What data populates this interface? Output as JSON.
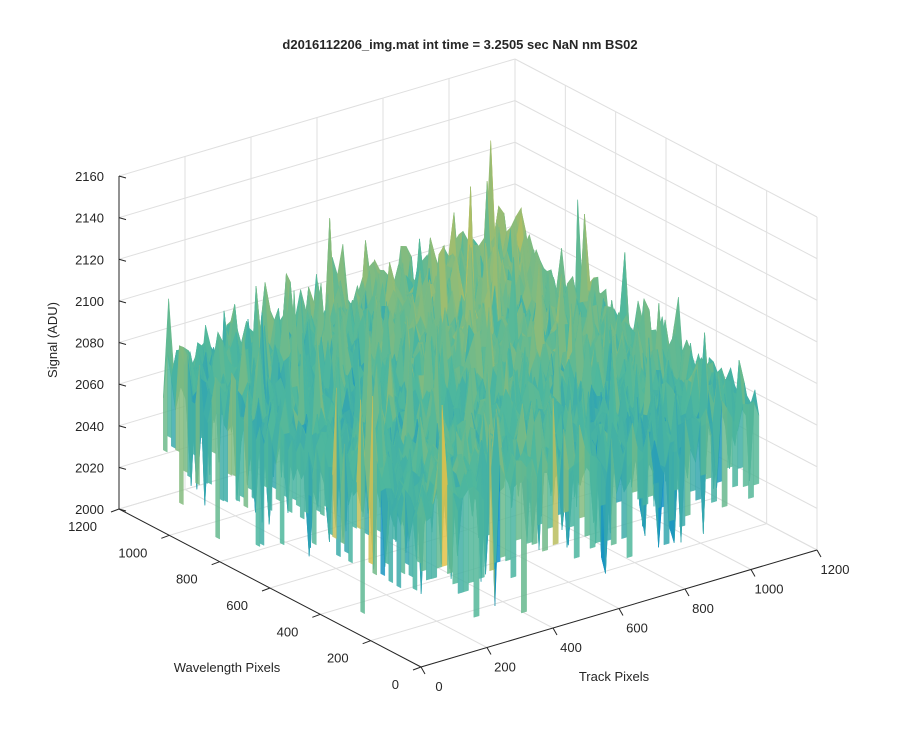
{
  "chart_data": {
    "type": "surface",
    "title": "d2016112206_img.mat int time = 3.2505 sec  NaN nm BS02",
    "xlabel": "Track Pixels",
    "ylabel": "Wavelength Pixels",
    "zlabel": "Signal (ADU)",
    "xlim": [
      0,
      1200
    ],
    "ylim": [
      0,
      1200
    ],
    "zlim": [
      2000,
      2160
    ],
    "xticks": [
      "0",
      "200",
      "400",
      "600",
      "800",
      "1000",
      "1200"
    ],
    "yticks": [
      "0",
      "200",
      "400",
      "600",
      "800",
      "1000",
      "1200"
    ],
    "zticks": [
      "2000",
      "2020",
      "2040",
      "2060",
      "2080",
      "2100",
      "2120",
      "2140",
      "2160"
    ],
    "grid": true,
    "colormap": "parula",
    "surface_summary": {
      "x_extent": [
        0,
        1024
      ],
      "y_extent": [
        0,
        1024
      ],
      "typical_signal": 2075,
      "signal_range": [
        2000,
        2160
      ],
      "peak_signal_near": {
        "x": 1024,
        "y": 1024,
        "z": 2150
      },
      "note_values_estimated": true
    }
  },
  "colors": {
    "axis": "#262626",
    "grid": "#dfdfdf",
    "colormap_low": "#0f8ec9",
    "colormap_mid": "#4fb89d",
    "colormap_high": "#e9c144"
  }
}
